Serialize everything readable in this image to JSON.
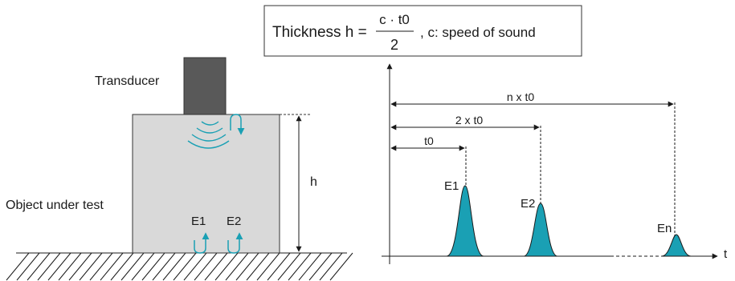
{
  "formula": {
    "prefix": "Thickness h =",
    "numerator": "c · t0",
    "denominator": "2",
    "suffix": ", c: speed of sound"
  },
  "labels": {
    "transducer": "Transducer",
    "object": "Object under test",
    "height": "h",
    "echo_e1_inside": "E1",
    "echo_e2_inside": "E2"
  },
  "timeline": {
    "axis_label": "t",
    "t0": "t0",
    "two_t0": "2 x t0",
    "n_t0": "n x t0",
    "peaks": [
      "E1",
      "E2",
      "En"
    ]
  },
  "colors": {
    "echo": "#1aa0b4",
    "block_fill": "#d9d9d9",
    "transducer_fill": "#595959"
  }
}
